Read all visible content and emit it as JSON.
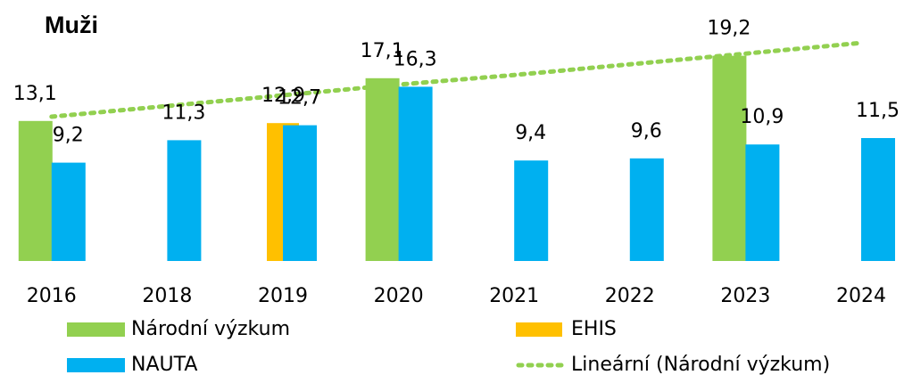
{
  "chart_data": {
    "type": "bar",
    "title": "Muži",
    "categories": [
      "2016",
      "2018",
      "2019",
      "2020",
      "2021",
      "2022",
      "2023",
      "2024"
    ],
    "ylim": [
      0,
      24
    ],
    "series": [
      {
        "name": "Národní výzkum",
        "color": "#92d050",
        "values": [
          13.1,
          null,
          null,
          17.1,
          null,
          null,
          19.2,
          null
        ],
        "value_labels": [
          "13,1",
          null,
          null,
          "17,1",
          null,
          null,
          "19,2",
          null
        ]
      },
      {
        "name": "EHIS",
        "color": "#ffc000",
        "values": [
          null,
          null,
          12.9,
          null,
          null,
          null,
          null,
          null
        ],
        "value_labels": [
          null,
          null,
          "12,9",
          null,
          null,
          null,
          null,
          null
        ]
      },
      {
        "name": "NAUTA",
        "color": "#00b0f0",
        "values": [
          9.2,
          11.3,
          12.7,
          16.3,
          9.4,
          9.6,
          10.9,
          11.5
        ],
        "value_labels": [
          "9,2",
          "11,3",
          "12,7",
          "16,3",
          "9,4",
          "9,6",
          "10,9",
          "11,5"
        ]
      },
      {
        "name": "Lineární (Národní výzkum)",
        "type": "line",
        "color": "#92d050",
        "values": [
          13.5,
          14.5,
          15.5,
          16.5,
          17.4,
          18.4,
          19.4,
          20.4
        ]
      }
    ]
  }
}
